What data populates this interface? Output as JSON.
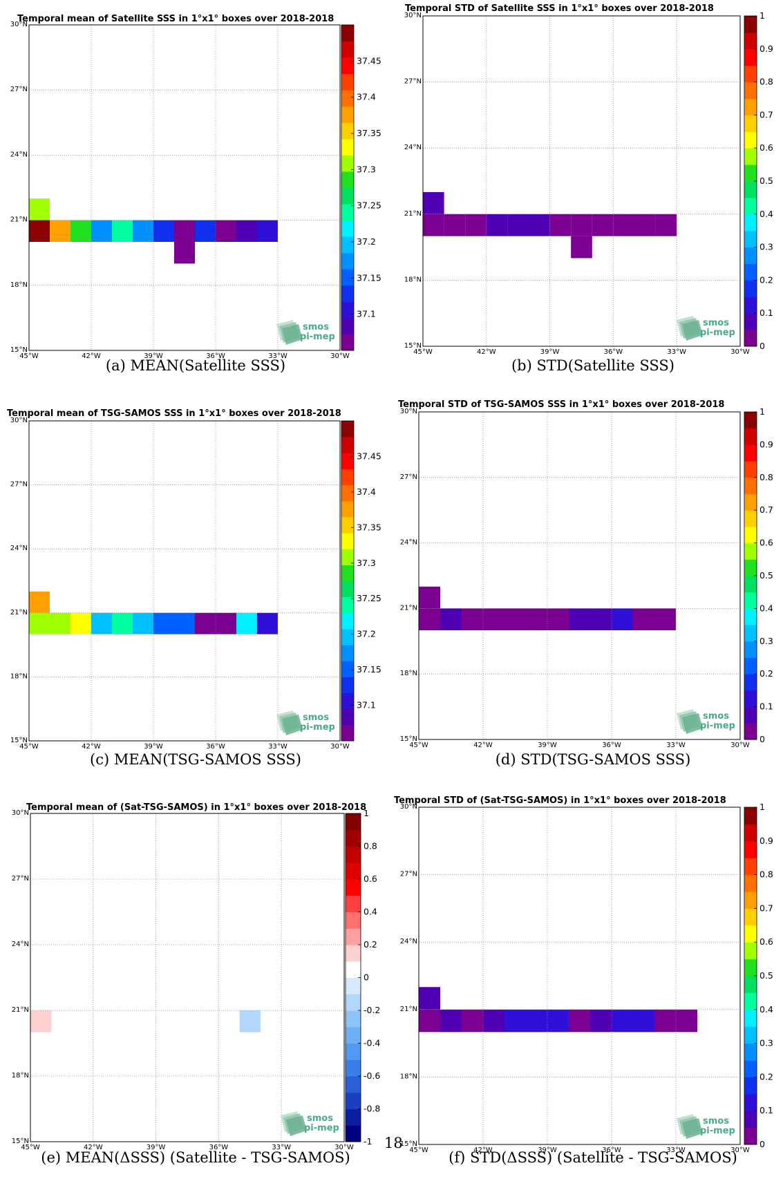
{
  "page_number": "18",
  "logo": {
    "line1": "smos",
    "line2": "pi-mep"
  },
  "chart_data": [
    {
      "type": "heatmap",
      "title": "Temporal mean of Satellite SSS in 1°x1° boxes over 2018-2018",
      "caption": "(a) MEAN(Satellite SSS)",
      "xlabel": "",
      "ylabel": "",
      "xlim": [
        -45,
        -30
      ],
      "ylim": [
        15,
        30
      ],
      "xticks": [
        "45°W",
        "42°W",
        "39°W",
        "36°W",
        "33°W",
        "30°W"
      ],
      "yticks": [
        "15°N",
        "18°N",
        "21°N",
        "24°N",
        "27°N",
        "30°N"
      ],
      "colorbar": {
        "range": [
          37.05,
          37.5
        ],
        "ticks": [
          "37.1",
          "37.15",
          "37.2",
          "37.25",
          "37.3",
          "37.35",
          "37.4",
          "37.45"
        ],
        "colors": [
          "#7b0091",
          "#5000b4",
          "#3010d8",
          "#1030f0",
          "#0060ff",
          "#0090ff",
          "#00c0ff",
          "#00f0ff",
          "#00ffa0",
          "#00e060",
          "#20e020",
          "#a0ff00",
          "#ffff00",
          "#ffd000",
          "#ffa000",
          "#ff7000",
          "#ff4000",
          "#ff0000",
          "#d00000",
          "#8b0000"
        ]
      },
      "cells": [
        {
          "lon": -45,
          "lat": 21,
          "value": 37.315
        },
        {
          "lon": -45,
          "lat": 20,
          "value": 37.49
        },
        {
          "lon": -44,
          "lat": 20,
          "value": 37.375
        },
        {
          "lon": -43,
          "lat": 20,
          "value": 37.29
        },
        {
          "lon": -42,
          "lat": 20,
          "value": 37.18
        },
        {
          "lon": -41,
          "lat": 20,
          "value": 37.24
        },
        {
          "lon": -40,
          "lat": 20,
          "value": 37.18
        },
        {
          "lon": -39,
          "lat": 20,
          "value": 37.12
        },
        {
          "lon": -38,
          "lat": 20,
          "value": 37.06
        },
        {
          "lon": -37,
          "lat": 20,
          "value": 37.12
        },
        {
          "lon": -36,
          "lat": 20,
          "value": 37.06
        },
        {
          "lon": -35,
          "lat": 20,
          "value": 37.09
        },
        {
          "lon": -34,
          "lat": 20,
          "value": 37.11
        },
        {
          "lon": -38,
          "lat": 19,
          "value": 37.07
        }
      ]
    },
    {
      "type": "heatmap",
      "title": "Temporal STD of Satellite SSS in 1°x1° boxes over 2018-2018",
      "caption": "(b) STD(Satellite SSS)",
      "xlabel": "",
      "ylabel": "",
      "xlim": [
        -45,
        -30
      ],
      "ylim": [
        15,
        30
      ],
      "xticks": [
        "45°W",
        "42°W",
        "39°W",
        "36°W",
        "33°W",
        "30°W"
      ],
      "yticks": [
        "15°N",
        "18°N",
        "21°N",
        "24°N",
        "27°N",
        "30°N"
      ],
      "colorbar": {
        "range": [
          0,
          1
        ],
        "ticks": [
          "0",
          "0.1",
          "0.2",
          "0.3",
          "0.4",
          "0.5",
          "0.6",
          "0.7",
          "0.8",
          "0.9",
          "1"
        ],
        "colors": [
          "#7b0091",
          "#5000b4",
          "#3010d8",
          "#1030f0",
          "#0060ff",
          "#0090ff",
          "#00c0ff",
          "#00f0ff",
          "#00ffa0",
          "#00e060",
          "#20e020",
          "#a0ff00",
          "#ffff00",
          "#ffd000",
          "#ffa000",
          "#ff7000",
          "#ff4000",
          "#ff0000",
          "#d00000",
          "#8b0000"
        ]
      },
      "cells": [
        {
          "lon": -45,
          "lat": 21,
          "value": 0.06
        },
        {
          "lon": -45,
          "lat": 20,
          "value": 0.02
        },
        {
          "lon": -44,
          "lat": 20,
          "value": 0.02
        },
        {
          "lon": -43,
          "lat": 20,
          "value": 0.02
        },
        {
          "lon": -42,
          "lat": 20,
          "value": 0.06
        },
        {
          "lon": -41,
          "lat": 20,
          "value": 0.06
        },
        {
          "lon": -40,
          "lat": 20,
          "value": 0.06
        },
        {
          "lon": -39,
          "lat": 20,
          "value": 0.02
        },
        {
          "lon": -38,
          "lat": 20,
          "value": 0.02
        },
        {
          "lon": -37,
          "lat": 20,
          "value": 0.02
        },
        {
          "lon": -36,
          "lat": 20,
          "value": 0.02
        },
        {
          "lon": -35,
          "lat": 20,
          "value": 0.02
        },
        {
          "lon": -34,
          "lat": 20,
          "value": 0.02
        },
        {
          "lon": -38,
          "lat": 19,
          "value": 0.02
        }
      ]
    },
    {
      "type": "heatmap",
      "title": "Temporal mean of TSG-SAMOS SSS in 1°x1° boxes over 2018-2018",
      "caption": "(c) MEAN(TSG-SAMOS SSS)",
      "xlabel": "",
      "ylabel": "",
      "xlim": [
        -45,
        -30
      ],
      "ylim": [
        15,
        30
      ],
      "xticks": [
        "45°W",
        "42°W",
        "39°W",
        "36°W",
        "33°W",
        "30°W"
      ],
      "yticks": [
        "15°N",
        "18°N",
        "21°N",
        "24°N",
        "27°N",
        "30°N"
      ],
      "colorbar": {
        "range": [
          37.05,
          37.5
        ],
        "ticks": [
          "37.1",
          "37.15",
          "37.2",
          "37.25",
          "37.3",
          "37.35",
          "37.4",
          "37.45"
        ],
        "colors": [
          "#7b0091",
          "#5000b4",
          "#3010d8",
          "#1030f0",
          "#0060ff",
          "#0090ff",
          "#00c0ff",
          "#00f0ff",
          "#00ffa0",
          "#00e060",
          "#20e020",
          "#a0ff00",
          "#ffff00",
          "#ffd000",
          "#ffa000",
          "#ff7000",
          "#ff4000",
          "#ff0000",
          "#d00000",
          "#8b0000"
        ]
      },
      "cells": [
        {
          "lon": -45,
          "lat": 21,
          "value": 37.37
        },
        {
          "lon": -45,
          "lat": 20,
          "value": 37.315
        },
        {
          "lon": -44,
          "lat": 20,
          "value": 37.315
        },
        {
          "lon": -43,
          "lat": 20,
          "value": 37.335
        },
        {
          "lon": -42,
          "lat": 20,
          "value": 37.205
        },
        {
          "lon": -41,
          "lat": 20,
          "value": 37.24
        },
        {
          "lon": -40,
          "lat": 20,
          "value": 37.205
        },
        {
          "lon": -39,
          "lat": 20,
          "value": 37.16
        },
        {
          "lon": -38,
          "lat": 20,
          "value": 37.16
        },
        {
          "lon": -37,
          "lat": 20,
          "value": 37.06
        },
        {
          "lon": -36,
          "lat": 20,
          "value": 37.06
        },
        {
          "lon": -35,
          "lat": 20,
          "value": 37.225
        },
        {
          "lon": -34,
          "lat": 20,
          "value": 37.11
        }
      ]
    },
    {
      "type": "heatmap",
      "title": "Temporal STD of TSG-SAMOS SSS in 1°x1° boxes over 2018-2018",
      "caption": "(d) STD(TSG-SAMOS SSS)",
      "xlabel": "",
      "ylabel": "",
      "xlim": [
        -45,
        -30
      ],
      "ylim": [
        15,
        30
      ],
      "xticks": [
        "45°W",
        "42°W",
        "39°W",
        "36°W",
        "33°W",
        "30°W"
      ],
      "yticks": [
        "15°N",
        "18°N",
        "21°N",
        "24°N",
        "27°N",
        "30°N"
      ],
      "colorbar": {
        "range": [
          0,
          1
        ],
        "ticks": [
          "0",
          "0.1",
          "0.2",
          "0.3",
          "0.4",
          "0.5",
          "0.6",
          "0.7",
          "0.8",
          "0.9",
          "1"
        ],
        "colors": [
          "#7b0091",
          "#5000b4",
          "#3010d8",
          "#1030f0",
          "#0060ff",
          "#0090ff",
          "#00c0ff",
          "#00f0ff",
          "#00ffa0",
          "#00e060",
          "#20e020",
          "#a0ff00",
          "#ffff00",
          "#ffd000",
          "#ffa000",
          "#ff7000",
          "#ff4000",
          "#ff0000",
          "#d00000",
          "#8b0000"
        ]
      },
      "cells": [
        {
          "lon": -45,
          "lat": 21,
          "value": 0.02
        },
        {
          "lon": -45,
          "lat": 20,
          "value": 0.02
        },
        {
          "lon": -44,
          "lat": 20,
          "value": 0.06
        },
        {
          "lon": -43,
          "lat": 20,
          "value": 0.02
        },
        {
          "lon": -42,
          "lat": 20,
          "value": 0.02
        },
        {
          "lon": -41,
          "lat": 20,
          "value": 0.02
        },
        {
          "lon": -40,
          "lat": 20,
          "value": 0.02
        },
        {
          "lon": -39,
          "lat": 20,
          "value": 0.02
        },
        {
          "lon": -38,
          "lat": 20,
          "value": 0.06
        },
        {
          "lon": -37,
          "lat": 20,
          "value": 0.06
        },
        {
          "lon": -36,
          "lat": 20,
          "value": 0.11
        },
        {
          "lon": -35,
          "lat": 20,
          "value": 0.02
        },
        {
          "lon": -34,
          "lat": 20,
          "value": 0.02
        }
      ]
    },
    {
      "type": "heatmap",
      "title": "Temporal mean of (Sat-TSG-SAMOS) in 1°x1° boxes over 2018-2018",
      "caption": "(e) MEAN(ΔSSS) (Satellite - TSG-SAMOS)",
      "xlabel": "",
      "ylabel": "",
      "xlim": [
        -45,
        -30
      ],
      "ylim": [
        15,
        30
      ],
      "xticks": [
        "45°W",
        "42°W",
        "39°W",
        "36°W",
        "33°W",
        "30°W"
      ],
      "yticks": [
        "15°N",
        "18°N",
        "21°N",
        "24°N",
        "27°N",
        "30°N"
      ],
      "colorbar": {
        "range": [
          -1,
          1
        ],
        "ticks": [
          "-1",
          "-0.8",
          "-0.6",
          "-0.4",
          "-0.2",
          "0",
          "0.2",
          "0.4",
          "0.6",
          "0.8",
          "1"
        ],
        "colors": [
          "#00007f",
          "#0a1fa0",
          "#1840c0",
          "#2a5fd8",
          "#3a7fe8",
          "#5299f0",
          "#6fb0f5",
          "#8ec4f8",
          "#b2d7fb",
          "#d6e9fd",
          "#ffffff",
          "#ffd0d0",
          "#ffa0a0",
          "#ff7070",
          "#ff4040",
          "#ff0000",
          "#e00000",
          "#c00000",
          "#a00000",
          "#800000"
        ]
      },
      "cells": [
        {
          "lon": -45,
          "lat": 20,
          "value": 0.15
        },
        {
          "lon": -35,
          "lat": 20,
          "value": -0.15
        }
      ]
    },
    {
      "type": "heatmap",
      "title": "Temporal STD of (Sat-TSG-SAMOS) in 1°x1° boxes over 2018-2018",
      "caption": "(f) STD(ΔSSS) (Satellite - TSG-SAMOS)",
      "xlabel": "",
      "ylabel": "",
      "xlim": [
        -45,
        -30
      ],
      "ylim": [
        15,
        30
      ],
      "xticks": [
        "45°W",
        "42°W",
        "39°W",
        "36°W",
        "33°W",
        "30°W"
      ],
      "yticks": [
        "15°N",
        "18°N",
        "21°N",
        "24°N",
        "27°N",
        "30°N"
      ],
      "colorbar": {
        "range": [
          0,
          1
        ],
        "ticks": [
          "0",
          "0.1",
          "0.2",
          "0.3",
          "0.4",
          "0.5",
          "0.6",
          "0.7",
          "0.8",
          "0.9",
          "1"
        ],
        "colors": [
          "#7b0091",
          "#5000b4",
          "#3010d8",
          "#1030f0",
          "#0060ff",
          "#0090ff",
          "#00c0ff",
          "#00f0ff",
          "#00ffa0",
          "#00e060",
          "#20e020",
          "#a0ff00",
          "#ffff00",
          "#ffd000",
          "#ffa000",
          "#ff7000",
          "#ff4000",
          "#ff0000",
          "#d00000",
          "#8b0000"
        ]
      },
      "cells": [
        {
          "lon": -45,
          "lat": 21,
          "value": 0.06
        },
        {
          "lon": -45,
          "lat": 20,
          "value": 0.02
        },
        {
          "lon": -44,
          "lat": 20,
          "value": 0.06
        },
        {
          "lon": -43,
          "lat": 20,
          "value": 0.02
        },
        {
          "lon": -42,
          "lat": 20,
          "value": 0.06
        },
        {
          "lon": -41,
          "lat": 20,
          "value": 0.11
        },
        {
          "lon": -40,
          "lat": 20,
          "value": 0.11
        },
        {
          "lon": -39,
          "lat": 20,
          "value": 0.11
        },
        {
          "lon": -38,
          "lat": 20,
          "value": 0.02
        },
        {
          "lon": -37,
          "lat": 20,
          "value": 0.06
        },
        {
          "lon": -36,
          "lat": 20,
          "value": 0.11
        },
        {
          "lon": -35,
          "lat": 20,
          "value": 0.11
        },
        {
          "lon": -34,
          "lat": 20,
          "value": 0.02
        },
        {
          "lon": -33,
          "lat": 20,
          "value": 0.02
        }
      ]
    }
  ]
}
